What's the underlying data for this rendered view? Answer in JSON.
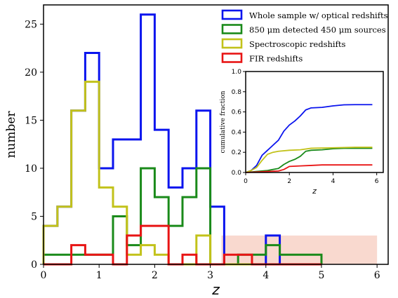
{
  "chart_data": [
    {
      "type": "histogram-step",
      "xlabel": "z",
      "ylabel": "number",
      "xlim": [
        0,
        6.2
      ],
      "ylim": [
        0,
        27
      ],
      "xticks": [
        "0",
        "1",
        "2",
        "3",
        "4",
        "5",
        "6"
      ],
      "yticks": [
        "0",
        "5",
        "10",
        "15",
        "20",
        "25"
      ],
      "legend_position": "top-right",
      "shaded_region": {
        "x": [
          3.2,
          6.0
        ],
        "y": [
          0,
          3
        ],
        "color": "#f9d9cf"
      },
      "series": [
        {
          "name": "Whole sample w/ optical redshifts",
          "color": "#0a14ee",
          "edges": [
            0,
            0.25,
            0.5,
            0.75,
            1.0,
            1.25,
            1.5,
            1.75,
            2.0,
            2.25,
            2.5,
            2.75,
            3.0,
            3.25,
            3.5,
            3.75,
            4.0,
            4.25,
            4.5,
            4.75,
            5.0
          ],
          "values": [
            4,
            6,
            16,
            22,
            10,
            13,
            13,
            26,
            14,
            8,
            10,
            16,
            6,
            0,
            0,
            0,
            3,
            0,
            0,
            0
          ]
        },
        {
          "name": "850 μm detected 450 μm sources",
          "color": "#1a8a1a",
          "edges": [
            0,
            0.25,
            0.5,
            0.75,
            1.0,
            1.25,
            1.5,
            1.75,
            2.0,
            2.25,
            2.5,
            2.75,
            3.0,
            3.25,
            3.5,
            3.75,
            4.0,
            4.25,
            4.5,
            4.75,
            5.0
          ],
          "values": [
            1,
            1,
            1,
            1,
            1,
            5,
            2,
            10,
            7,
            4,
            7,
            10,
            0,
            0,
            1,
            1,
            2,
            1,
            1,
            1
          ]
        },
        {
          "name": "Spectroscopic redshifts",
          "color": "#c2c21a",
          "edges": [
            0,
            0.25,
            0.5,
            0.75,
            1.0,
            1.25,
            1.5,
            1.75,
            2.0,
            2.25,
            2.5,
            2.75,
            3.0,
            3.25,
            3.5,
            3.75,
            4.0,
            4.25,
            4.5,
            4.75,
            5.0
          ],
          "values": [
            4,
            6,
            16,
            19,
            8,
            6,
            1,
            2,
            1,
            0,
            0,
            3,
            0,
            0,
            0,
            0,
            0,
            0,
            0,
            0
          ]
        },
        {
          "name": "FIR redshifts",
          "color": "#e81414",
          "edges": [
            0,
            0.25,
            0.5,
            0.75,
            1.0,
            1.25,
            1.5,
            1.75,
            2.0,
            2.25,
            2.5,
            2.75,
            3.0,
            3.25,
            3.5,
            3.75,
            4.0,
            4.25,
            4.5,
            4.75,
            5.0
          ],
          "values": [
            0,
            0,
            2,
            1,
            1,
            0,
            3,
            4,
            4,
            0,
            1,
            0,
            0,
            1,
            1,
            0,
            0,
            0,
            0,
            0
          ]
        }
      ]
    },
    {
      "type": "line",
      "xlabel": "z",
      "ylabel": "cumulative fraction",
      "xlim": [
        0,
        6.3
      ],
      "ylim": [
        0,
        1.0
      ],
      "xticks": [
        "0",
        "2",
        "4",
        "6"
      ],
      "yticks": [
        "0.0",
        "0.2",
        "0.4",
        "0.6",
        "0.8",
        "1.0"
      ],
      "series": [
        {
          "name": "Whole sample w/ optical redshifts",
          "color": "#0a14ee",
          "x": [
            0.0,
            0.25,
            0.5,
            0.75,
            1.0,
            1.25,
            1.5,
            1.75,
            2.0,
            2.25,
            2.5,
            2.75,
            3.0,
            3.5,
            4.0,
            4.5,
            5.0,
            5.8
          ],
          "y": [
            0.0,
            0.02,
            0.07,
            0.17,
            0.22,
            0.27,
            0.32,
            0.41,
            0.47,
            0.51,
            0.56,
            0.62,
            0.64,
            0.645,
            0.66,
            0.67,
            0.672,
            0.672
          ]
        },
        {
          "name": "850 μm detected 450 μm sources",
          "color": "#1a8a1a",
          "x": [
            0.0,
            0.5,
            1.0,
            1.25,
            1.5,
            1.75,
            2.0,
            2.25,
            2.5,
            2.75,
            3.0,
            3.5,
            4.0,
            4.5,
            5.0,
            5.8
          ],
          "y": [
            0.0,
            0.01,
            0.02,
            0.03,
            0.04,
            0.08,
            0.11,
            0.13,
            0.16,
            0.21,
            0.22,
            0.225,
            0.235,
            0.24,
            0.24,
            0.24
          ]
        },
        {
          "name": "Spectroscopic redshifts",
          "color": "#c2c21a",
          "x": [
            0.0,
            0.25,
            0.5,
            0.75,
            1.0,
            1.25,
            1.5,
            2.0,
            2.5,
            3.0,
            4.0,
            5.0,
            5.8
          ],
          "y": [
            0.0,
            0.02,
            0.05,
            0.12,
            0.18,
            0.2,
            0.21,
            0.22,
            0.225,
            0.24,
            0.245,
            0.25,
            0.25
          ]
        },
        {
          "name": "FIR redshifts",
          "color": "#e81414",
          "x": [
            0.0,
            0.5,
            1.0,
            1.5,
            1.75,
            2.0,
            2.5,
            3.0,
            3.5,
            4.0,
            5.0,
            5.8
          ],
          "y": [
            0.0,
            0.005,
            0.01,
            0.015,
            0.03,
            0.06,
            0.065,
            0.07,
            0.075,
            0.075,
            0.075,
            0.075
          ]
        }
      ]
    }
  ]
}
